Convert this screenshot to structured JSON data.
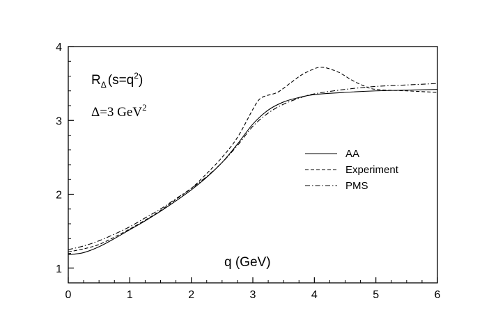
{
  "chart_data": {
    "type": "line",
    "title": "",
    "xlabel": "q (GeV)",
    "ylabel": "",
    "xlim": [
      0,
      6
    ],
    "ylim": [
      0.8,
      4
    ],
    "x_ticks": [
      0,
      1,
      2,
      3,
      4,
      5,
      6
    ],
    "y_ticks": [
      1,
      2,
      3,
      4
    ],
    "grid": false,
    "legend_position": "center-right",
    "annotations": {
      "r_main": "R",
      "r_sub": "Δ",
      "r_rest": "(s=q",
      "r_sup": "2",
      "r_close": ")",
      "delta_main": "Δ=3 GeV",
      "delta_sup": "2"
    },
    "series": [
      {
        "name": "AA",
        "style": "solid",
        "x": [
          0,
          0.25,
          0.5,
          0.75,
          1.0,
          1.25,
          1.5,
          1.75,
          2.0,
          2.25,
          2.5,
          2.75,
          3.0,
          3.25,
          3.5,
          3.75,
          4.0,
          4.5,
          5.0,
          5.5,
          6.0
        ],
        "y": [
          1.18,
          1.21,
          1.29,
          1.4,
          1.52,
          1.64,
          1.77,
          1.91,
          2.06,
          2.23,
          2.43,
          2.68,
          2.95,
          3.14,
          3.25,
          3.31,
          3.35,
          3.38,
          3.4,
          3.41,
          3.42
        ]
      },
      {
        "name": "Experiment",
        "style": "dashed",
        "x": [
          0,
          0.25,
          0.5,
          0.75,
          1.0,
          1.25,
          1.5,
          1.75,
          2.0,
          2.25,
          2.5,
          2.75,
          3.0,
          3.1,
          3.2,
          3.4,
          3.6,
          3.8,
          4.0,
          4.1,
          4.2,
          4.4,
          4.6,
          4.8,
          5.0,
          5.5,
          6.0
        ],
        "y": [
          1.22,
          1.26,
          1.32,
          1.42,
          1.53,
          1.65,
          1.78,
          1.93,
          2.08,
          2.28,
          2.5,
          2.77,
          3.15,
          3.28,
          3.33,
          3.38,
          3.5,
          3.62,
          3.7,
          3.72,
          3.71,
          3.65,
          3.55,
          3.47,
          3.42,
          3.4,
          3.38
        ]
      },
      {
        "name": "PMS",
        "style": "dashdot",
        "x": [
          0,
          0.25,
          0.5,
          0.75,
          1.0,
          1.25,
          1.5,
          1.75,
          2.0,
          2.25,
          2.5,
          2.75,
          3.0,
          3.25,
          3.5,
          3.75,
          4.0,
          4.5,
          5.0,
          5.5,
          6.0
        ],
        "y": [
          1.25,
          1.3,
          1.37,
          1.46,
          1.56,
          1.68,
          1.8,
          1.94,
          2.08,
          2.24,
          2.43,
          2.66,
          2.92,
          3.1,
          3.22,
          3.3,
          3.36,
          3.42,
          3.46,
          3.48,
          3.5
        ]
      }
    ]
  }
}
